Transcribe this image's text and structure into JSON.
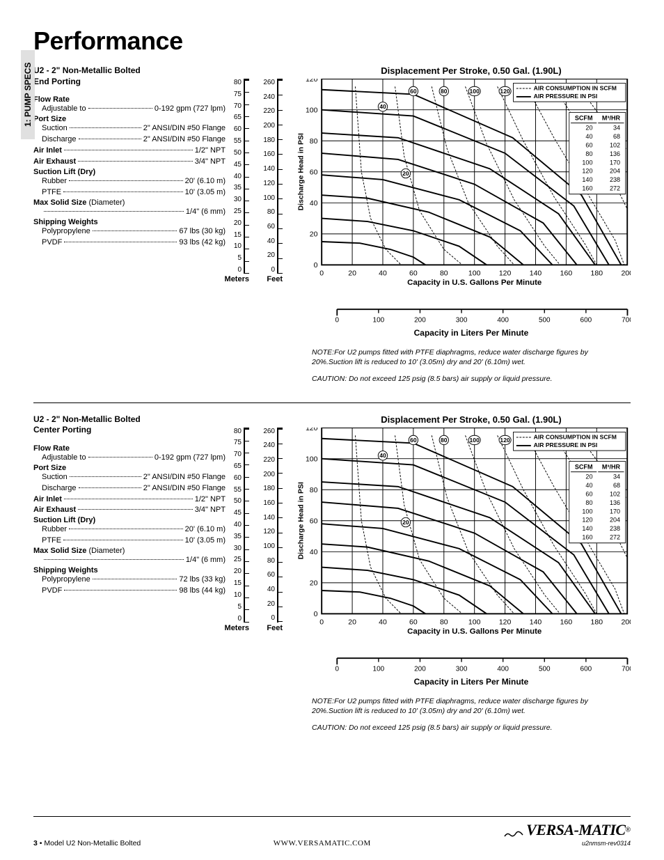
{
  "page_title": "Performance",
  "side_tab": "1: PUMP SPECS",
  "sections": [
    {
      "subtitle_l1": "U2 - 2\" Non-Metallic Bolted",
      "subtitle_l2": "End Porting",
      "specs": {
        "flow_rate_label": "Flow Rate",
        "flow_rate_sub": "Adjustable to",
        "flow_rate_val": "0-192 gpm (727 lpm)",
        "port_size": "Port Size",
        "suction_label": "Suction",
        "suction_val": "2\" ANSI/DIN #50 Flange",
        "discharge_label": "Discharge",
        "discharge_val": "2\" ANSI/DIN #50 Flange",
        "air_inlet_label": "Air Inlet",
        "air_inlet_val": "1/2\" NPT",
        "air_exhaust_label": "Air Exhaust",
        "air_exhaust_val": "3/4\" NPT",
        "suction_lift": "Suction Lift (Dry)",
        "rubber_label": "Rubber",
        "rubber_val": "20' (6.10 m)",
        "ptfe_label": "PTFE",
        "ptfe_val": "10' (3.05 m)",
        "max_solid": "Max Solid Size",
        "max_solid_paren": " (Diameter)",
        "max_solid_val": "1/4\" (6 mm)",
        "ship_weights": "Shipping Weights",
        "poly_label": "Polypropylene",
        "poly_val": "67 lbs (30 kg)",
        "pvdf_label": "PVDF",
        "pvdf_val": "93 lbs (42 kg)"
      }
    },
    {
      "subtitle_l1": "U2 - 2\" Non-Metallic Bolted",
      "subtitle_l2": "Center Porting",
      "specs": {
        "flow_rate_label": "Flow Rate",
        "flow_rate_sub": "Adjustable to",
        "flow_rate_val": "0-192 gpm (727 lpm)",
        "port_size": "Port Size",
        "suction_label": "Suction",
        "suction_val": "2\" ANSI/DIN #50 Flange",
        "discharge_label": "Discharge",
        "discharge_val": "2\" ANSI/DIN #50 Flange",
        "air_inlet_label": "Air Inlet",
        "air_inlet_val": "1/2\" NPT",
        "air_exhaust_label": "Air Exhaust",
        "air_exhaust_val": "3/4\" NPT",
        "suction_lift": "Suction Lift (Dry)",
        "rubber_label": "Rubber",
        "rubber_val": "20' (6.10 m)",
        "ptfe_label": "PTFE",
        "ptfe_val": "10' (3.05 m)",
        "max_solid": "Max Solid Size",
        "max_solid_paren": " (Diameter)",
        "max_solid_val": "1/4\" (6 mm)",
        "ship_weights": "Shipping Weights",
        "poly_label": "Polypropylene",
        "poly_val": "72 lbs (33 kg)",
        "pvdf_label": "PVDF",
        "pvdf_val": "98 lbs (44 kg)"
      }
    }
  ],
  "chart": {
    "title": "Displacement Per Stroke, 0.50 Gal. (1.90L)",
    "y_meters_unit": "Meters",
    "y_feet_unit": "Feet",
    "y_psi_label": "Discharge Head in PSI",
    "y_meters_ticks": [
      "80",
      "75",
      "70",
      "65",
      "60",
      "55",
      "50",
      "45",
      "40",
      "35",
      "30",
      "25",
      "20",
      "15",
      "10",
      "5",
      "0"
    ],
    "y_feet_ticks": [
      "260",
      "240",
      "220",
      "200",
      "180",
      "160",
      "140",
      "120",
      "100",
      "80",
      "60",
      "40",
      "20",
      "0"
    ],
    "y_psi_ticks": [
      120,
      100,
      80,
      60,
      40,
      20,
      0
    ],
    "x_gpm_ticks": [
      0,
      20,
      40,
      60,
      80,
      100,
      120,
      140,
      160,
      180,
      200
    ],
    "x_gpm_label": "Capacity in U.S. Gallons Per Minute",
    "x_lpm_ticks": [
      0,
      100,
      200,
      300,
      400,
      500,
      600,
      700
    ],
    "x_lpm_label": "Capacity in Liters Per Minute",
    "xlim": [
      0,
      200
    ],
    "ylim": [
      0,
      120
    ],
    "grid_color": "#000000",
    "solid_curves_psi": [
      20,
      40,
      60,
      80,
      100,
      120,
      140,
      160
    ],
    "solid_curves": [
      [
        [
          0,
          15
        ],
        [
          25,
          14
        ],
        [
          45,
          10
        ],
        [
          60,
          5
        ],
        [
          68,
          0
        ]
      ],
      [
        [
          0,
          30
        ],
        [
          30,
          28
        ],
        [
          60,
          22
        ],
        [
          90,
          12
        ],
        [
          108,
          0
        ]
      ],
      [
        [
          0,
          45
        ],
        [
          30,
          43
        ],
        [
          70,
          34
        ],
        [
          110,
          18
        ],
        [
          132,
          0
        ]
      ],
      [
        [
          0,
          58
        ],
        [
          40,
          55
        ],
        [
          90,
          42
        ],
        [
          130,
          22
        ],
        [
          151,
          0
        ]
      ],
      [
        [
          0,
          72
        ],
        [
          50,
          68
        ],
        [
          100,
          52
        ],
        [
          145,
          27
        ],
        [
          167,
          0
        ]
      ],
      [
        [
          0,
          85
        ],
        [
          50,
          82
        ],
        [
          110,
          62
        ],
        [
          155,
          33
        ],
        [
          179,
          0
        ]
      ],
      [
        [
          0,
          100
        ],
        [
          60,
          96
        ],
        [
          120,
          72
        ],
        [
          165,
          38
        ],
        [
          188,
          0
        ]
      ],
      [
        [
          0,
          113
        ],
        [
          60,
          110
        ],
        [
          125,
          82
        ],
        [
          170,
          45
        ],
        [
          196,
          0
        ]
      ]
    ],
    "dashed_scfm": [
      20,
      40,
      60,
      80,
      100,
      120,
      140,
      160
    ],
    "dashed_curves": [
      [
        [
          22,
          115
        ],
        [
          26,
          60
        ],
        [
          32,
          30
        ],
        [
          42,
          10
        ],
        [
          52,
          0
        ]
      ],
      [
        [
          48,
          115
        ],
        [
          54,
          70
        ],
        [
          64,
          35
        ],
        [
          80,
          10
        ],
        [
          92,
          0
        ]
      ],
      [
        [
          72,
          115
        ],
        [
          82,
          75
        ],
        [
          96,
          40
        ],
        [
          115,
          12
        ],
        [
          126,
          0
        ]
      ],
      [
        [
          94,
          115
        ],
        [
          108,
          78
        ],
        [
          126,
          42
        ],
        [
          146,
          12
        ],
        [
          156,
          0
        ]
      ],
      [
        [
          115,
          115
        ],
        [
          132,
          80
        ],
        [
          152,
          44
        ],
        [
          172,
          14
        ],
        [
          180,
          0
        ]
      ],
      [
        [
          134,
          115
        ],
        [
          152,
          82
        ],
        [
          174,
          46
        ],
        [
          192,
          16
        ],
        [
          198,
          0
        ]
      ],
      [
        [
          152,
          115
        ],
        [
          172,
          84
        ],
        [
          194,
          48
        ],
        [
          200,
          36
        ]
      ],
      [
        [
          168,
          115
        ],
        [
          190,
          86
        ],
        [
          200,
          74
        ]
      ]
    ],
    "bubble_labels": [
      "20",
      "40",
      "60",
      "80",
      "100",
      "120",
      "140",
      "160"
    ],
    "bubble_pos": [
      [
        55,
        59
      ],
      [
        40,
        102
      ],
      [
        60,
        112
      ],
      [
        80,
        112
      ],
      [
        100,
        112
      ],
      [
        120,
        112
      ],
      [
        140,
        112
      ],
      [
        160,
        112
      ]
    ],
    "legend_scfm": "AIR CONSUMPTION IN SCFM",
    "legend_psi": "AIR PRESSURE IN PSI",
    "scfm_head1": "SCFM",
    "scfm_head2": "M³/HR",
    "scfm_rows": [
      [
        "20",
        "34"
      ],
      [
        "40",
        "68"
      ],
      [
        "60",
        "102"
      ],
      [
        "80",
        "136"
      ],
      [
        "100",
        "170"
      ],
      [
        "120",
        "204"
      ],
      [
        "140",
        "238"
      ],
      [
        "160",
        "272"
      ]
    ],
    "note1": "NOTE:For U2 pumps fitted with PTFE diaphragms, reduce water discharge figures by 20%.Suction lift is reduced to 10' (3.05m) dry and 20' (6.10m) wet.",
    "note2": "CAUTION: Do not exceed 125 psig (8.5 bars) air supply or liquid pressure."
  },
  "footer": {
    "page_num": "3",
    "model": "Model U2 Non-Metallic Bolted",
    "url": "WWW.VERSAMATIC.COM",
    "brand": "VERSA-MATIC",
    "rev": "u2nmsm-rev0314"
  }
}
